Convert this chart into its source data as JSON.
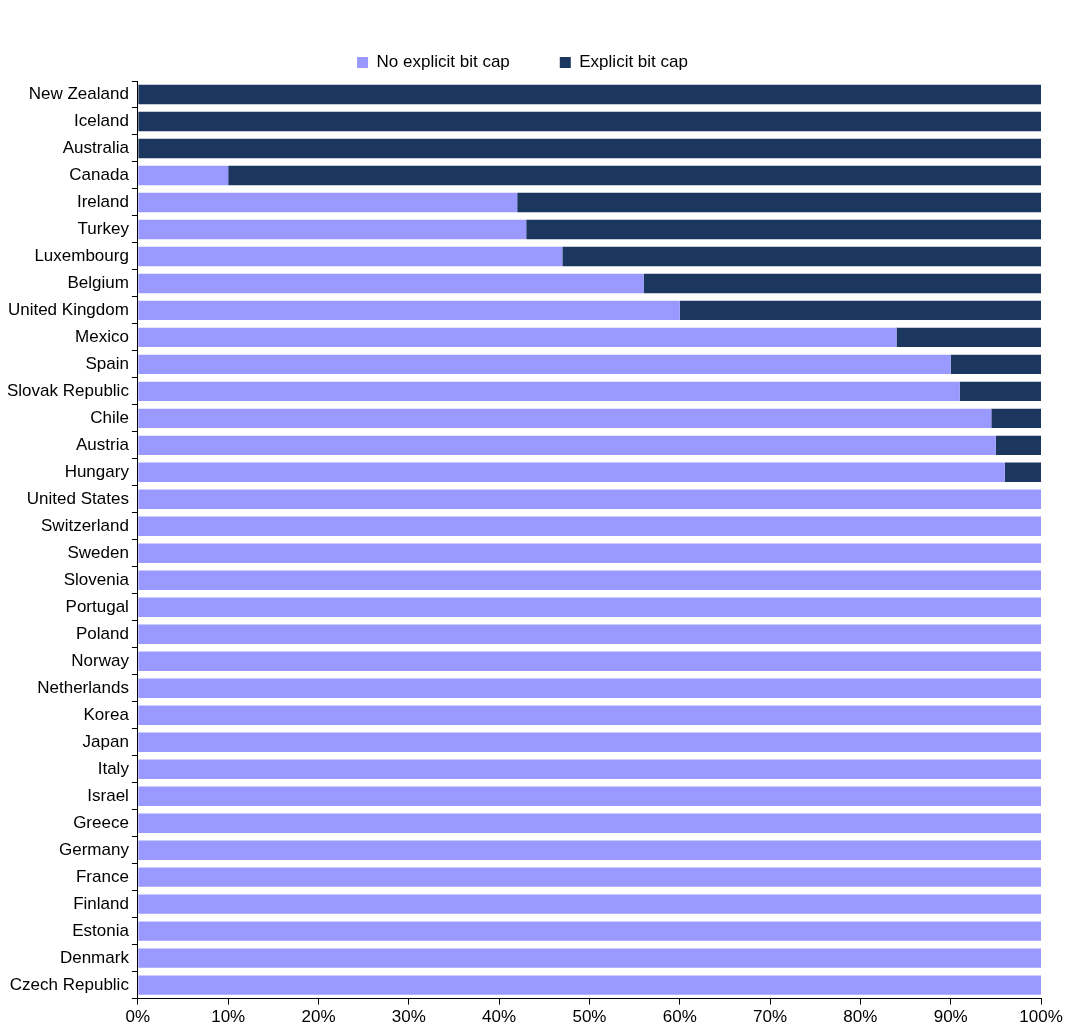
{
  "chart_data": {
    "type": "bar",
    "orientation": "horizontal",
    "stacked": true,
    "legend": "top",
    "categories": [
      "New Zealand",
      "Iceland",
      "Australia",
      "Canada",
      "Ireland",
      "Turkey",
      "Luxembourg",
      "Belgium",
      "United Kingdom",
      "Mexico",
      "Spain",
      "Slovak Republic",
      "Chile",
      "Austria",
      "Hungary",
      "United States",
      "Switzerland",
      "Sweden",
      "Slovenia",
      "Portugal",
      "Poland",
      "Norway",
      "Netherlands",
      "Korea",
      "Japan",
      "Italy",
      "Israel",
      "Greece",
      "Germany",
      "France",
      "Finland",
      "Estonia",
      "Denmark",
      "Czech Republic"
    ],
    "series": [
      {
        "name": "No explicit bit cap",
        "color": "#9999ff",
        "values": [
          0,
          0,
          0,
          10,
          42,
          43,
          47,
          56,
          60,
          84,
          90,
          91,
          94.5,
          95,
          96,
          100,
          100,
          100,
          100,
          100,
          100,
          100,
          100,
          100,
          100,
          100,
          100,
          100,
          100,
          100,
          100,
          100,
          100,
          100
        ]
      },
      {
        "name": "Explicit bit cap",
        "color": "#1b3760",
        "values": [
          100,
          100,
          100,
          90,
          58,
          57,
          53,
          44,
          40,
          16,
          10,
          9,
          5.5,
          5,
          4,
          0,
          0,
          0,
          0,
          0,
          0,
          0,
          0,
          0,
          0,
          0,
          0,
          0,
          0,
          0,
          0,
          0,
          0,
          0
        ]
      }
    ],
    "xlim": [
      0,
      100
    ],
    "xticks": [
      {
        "value": 0,
        "label": "0%"
      },
      {
        "value": 10,
        "label": "10%"
      },
      {
        "value": 20,
        "label": "20%"
      },
      {
        "value": 30,
        "label": "30%"
      },
      {
        "value": 40,
        "label": "40%"
      },
      {
        "value": 50,
        "label": "50%"
      },
      {
        "value": 60,
        "label": "60%"
      },
      {
        "value": 70,
        "label": "70%"
      },
      {
        "value": 80,
        "label": "80%"
      },
      {
        "value": 90,
        "label": "90%"
      },
      {
        "value": 100,
        "label": "100%"
      }
    ]
  }
}
